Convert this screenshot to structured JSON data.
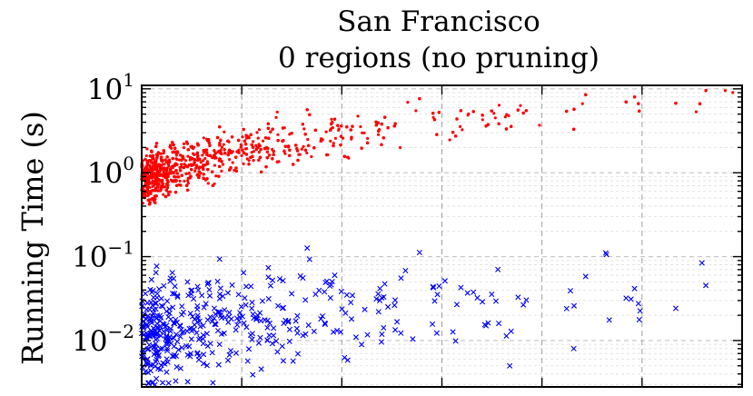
{
  "chart_data": {
    "type": "scatter",
    "title": "San Francisco",
    "subtitle": "0 regions (no pruning)",
    "xlabel": "",
    "ylabel": "Running Time (s)",
    "yscale": "log",
    "ylim": [
      0.0028,
      11
    ],
    "xlim": [
      0,
      6
    ],
    "grid": true,
    "legend": "none",
    "yticks": [
      {
        "base": "10",
        "exp": "1",
        "value": 10
      },
      {
        "base": "10",
        "exp": "0",
        "value": 1
      },
      {
        "base": "10",
        "exp": "−1",
        "value": 0.1
      },
      {
        "base": "10",
        "exp": "−2",
        "value": 0.01
      }
    ],
    "series": [
      {
        "color": "#ff0000",
        "marker": "dot",
        "trend": [
          [
            0,
            0.8
          ],
          [
            0.25,
            1.05
          ],
          [
            0.5,
            1.3
          ],
          [
            1,
            1.8
          ],
          [
            1.5,
            2.3
          ],
          [
            2,
            2.9
          ],
          [
            2.5,
            3.6
          ],
          [
            3,
            4.4
          ],
          [
            3.5,
            5.2
          ],
          [
            4,
            6.0
          ],
          [
            4.5,
            6.9
          ],
          [
            5,
            7.8
          ],
          [
            5.5,
            8.8
          ],
          [
            6,
            9.8
          ]
        ],
        "spread_log10": 0.14,
        "density": [
          [
            0,
            1
          ],
          [
            0.5,
            0.35
          ],
          [
            1,
            0.18
          ],
          [
            2,
            0.06
          ],
          [
            3,
            0.025
          ],
          [
            4,
            0.012
          ],
          [
            6,
            0.008
          ]
        ]
      },
      {
        "color": "#0000ff",
        "marker": "x",
        "trend": [
          [
            0,
            0.011
          ],
          [
            0.25,
            0.013
          ],
          [
            0.5,
            0.015
          ],
          [
            1,
            0.018
          ],
          [
            1.5,
            0.021
          ],
          [
            2,
            0.024
          ],
          [
            2.5,
            0.027
          ],
          [
            3,
            0.03
          ],
          [
            3.5,
            0.032
          ],
          [
            4,
            0.034
          ],
          [
            4.5,
            0.036
          ],
          [
            5,
            0.038
          ],
          [
            5.5,
            0.04
          ],
          [
            6,
            0.042
          ]
        ],
        "spread_log10": 0.3,
        "density": [
          [
            0,
            1
          ],
          [
            0.5,
            0.4
          ],
          [
            1,
            0.22
          ],
          [
            2,
            0.08
          ],
          [
            3,
            0.035
          ],
          [
            4,
            0.018
          ],
          [
            6,
            0.01
          ]
        ]
      }
    ]
  }
}
